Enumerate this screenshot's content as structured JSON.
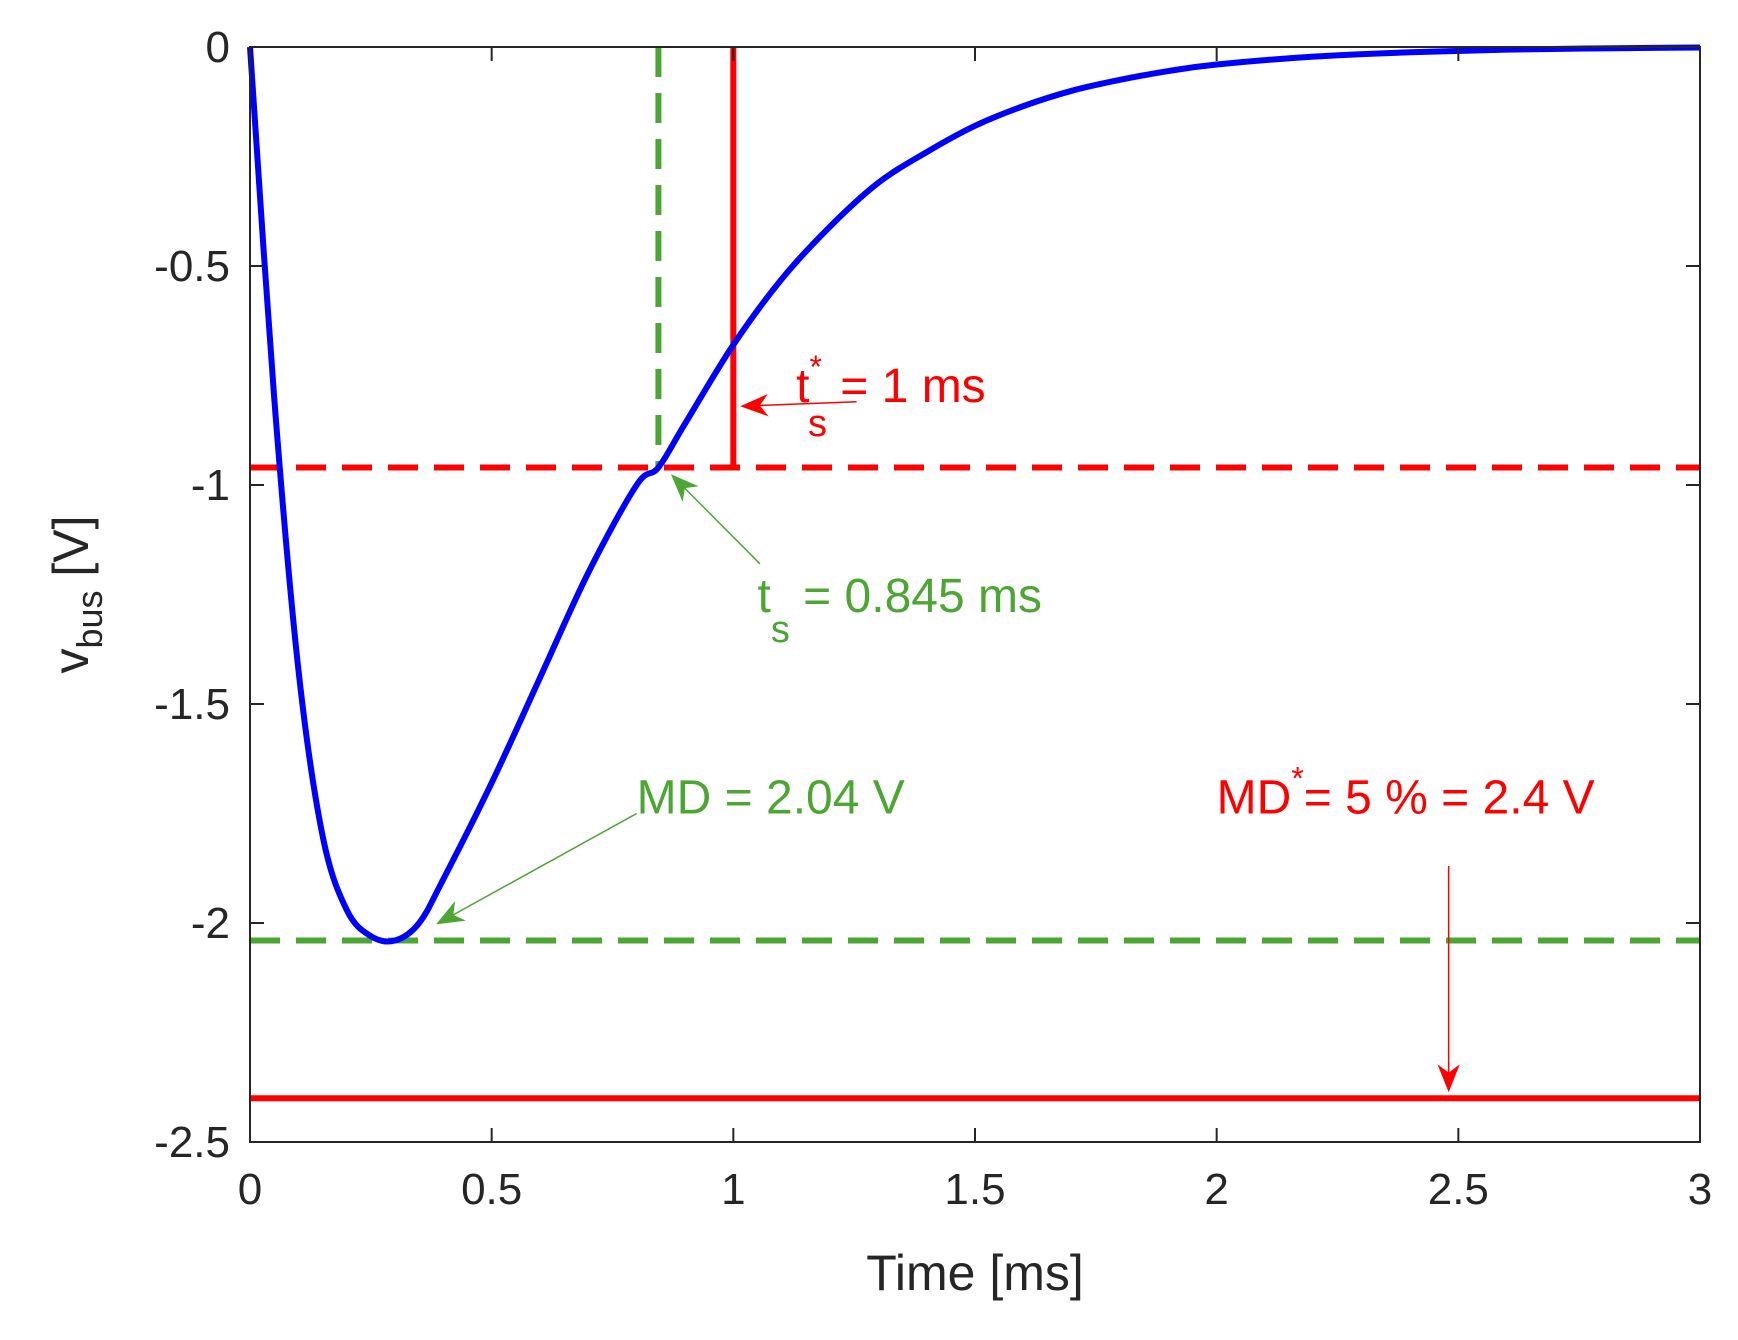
{
  "chart_data": {
    "type": "line",
    "title": "",
    "xlabel": "Time [ms]",
    "ylabel": {
      "main": "v",
      "sub": "bus",
      "unit": " [V]"
    },
    "xlim": [
      0,
      3
    ],
    "ylim": [
      -2.5,
      0
    ],
    "xticks": [
      0,
      0.5,
      1,
      1.5,
      2,
      2.5,
      3
    ],
    "xtick_labels": [
      "0",
      "0.5",
      "1",
      "1.5",
      "2",
      "2.5",
      "3"
    ],
    "yticks": [
      0,
      -0.5,
      -1,
      -1.5,
      -2,
      -2.5
    ],
    "ytick_labels": [
      "0",
      "-0.5",
      "-1",
      "-1.5",
      "-2",
      "-2.5"
    ],
    "grid": false,
    "series": [
      {
        "color": "#0000ff",
        "x": [
          0,
          0.05,
          0.1,
          0.15,
          0.2,
          0.25,
          0.3,
          0.35,
          0.4,
          0.5,
          0.6,
          0.7,
          0.8,
          0.845,
          0.9,
          1.0,
          1.1,
          1.2,
          1.3,
          1.4,
          1.5,
          1.6,
          1.7,
          1.8,
          1.9,
          2.0,
          2.2,
          2.4,
          2.6,
          2.8,
          3.0
        ],
        "y": [
          0,
          -0.8,
          -1.42,
          -1.8,
          -1.97,
          -2.03,
          -2.04,
          -2.0,
          -1.9,
          -1.68,
          -1.44,
          -1.2,
          -1.0,
          -0.96,
          -0.86,
          -0.68,
          -0.53,
          -0.41,
          -0.31,
          -0.24,
          -0.18,
          -0.135,
          -0.1,
          -0.075,
          -0.055,
          -0.04,
          -0.022,
          -0.012,
          -0.006,
          -0.003,
          -0.001
        ]
      }
    ],
    "reference_lines": [
      {
        "orientation": "horizontal",
        "value": -0.96,
        "color": "#ff0000",
        "style": "dashed"
      },
      {
        "orientation": "horizontal",
        "value": -2.04,
        "color": "#4ca633",
        "style": "dashed"
      },
      {
        "orientation": "horizontal",
        "value": -2.4,
        "color": "#ff0000",
        "style": "solid"
      },
      {
        "orientation": "vertical",
        "value": 0.845,
        "color": "#4ca633",
        "style": "dashed",
        "from": 0,
        "to": -0.96
      },
      {
        "orientation": "vertical",
        "value": 1.0,
        "color": "#ff0000",
        "style": "solid",
        "from": 0,
        "to": -0.96
      }
    ],
    "annotations": [
      {
        "main": "t",
        "sup": "*",
        "sub": "s",
        "rest": " = 1 ms",
        "color": "#ff0000",
        "text_at": [
          1.13,
          -0.81
        ],
        "arrow_to": [
          1.02,
          -0.82
        ]
      },
      {
        "main": "t",
        "sup": "",
        "sub": "s",
        "rest": " = 0.845 ms",
        "color": "#4ca633",
        "text_at": [
          1.05,
          -1.29
        ],
        "arrow_to": [
          0.875,
          -0.98
        ]
      },
      {
        "main": "MD",
        "sup": "",
        "sub": "",
        "rest": " = 2.04 V",
        "color": "#4ca633",
        "text_at": [
          0.8,
          -1.75
        ],
        "arrow_to": [
          0.39,
          -2.0
        ]
      },
      {
        "main": "MD",
        "sup": "*",
        "sub": "",
        "rest": "= 5 % = 2.4 V",
        "color": "#ff0000",
        "text_at": [
          2.0,
          -1.75
        ],
        "arrow_to": [
          2.48,
          -2.38
        ]
      }
    ],
    "colors": {
      "curve": "#0000ff",
      "spec": "#ff0000",
      "measured": "#4ca633",
      "axis": "#262626"
    }
  }
}
